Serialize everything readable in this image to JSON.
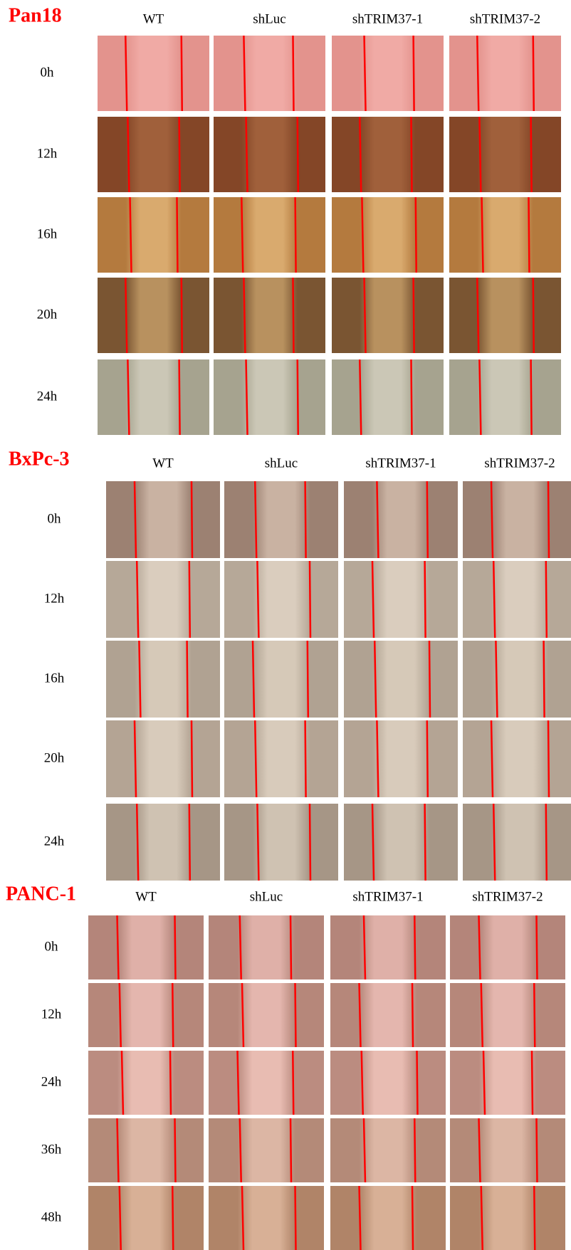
{
  "panels": [
    {
      "title": "Pan18",
      "columns": [
        "WT",
        "shLuc",
        "shTRIM37-1",
        "shTRIM37-2"
      ],
      "rows": [
        "0h",
        "12h",
        "16h",
        "20h",
        "24h"
      ]
    },
    {
      "title": "BxPc-3",
      "columns": [
        "WT",
        "shLuc",
        "shTRIM37-1",
        "shTRIM37-2"
      ],
      "rows": [
        "0h",
        "12h",
        "16h",
        "20h",
        "24h"
      ]
    },
    {
      "title": "PANC-1",
      "columns": [
        "WT",
        "shLuc",
        "shTRIM37-1",
        "shTRIM37-2"
      ],
      "rows": [
        "0h",
        "12h",
        "24h",
        "36h",
        "48h"
      ]
    }
  ]
}
